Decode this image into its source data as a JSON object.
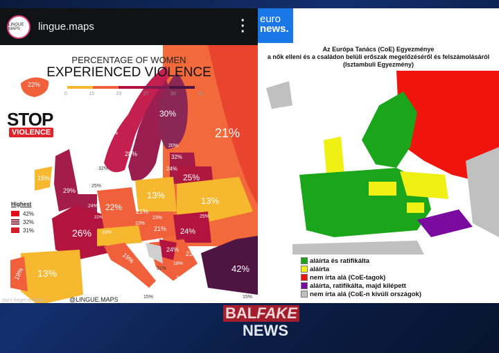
{
  "instagram": {
    "username": "lingue.maps",
    "avatar_text": "LINGUE MAPS",
    "more_icon": "more-vertical-icon"
  },
  "left_map": {
    "title_line1": "PERCENTAGE OF WOMEN",
    "title_line2": "EXPERIENCED VIOLENCE",
    "scale_ticks": [
      "0",
      "15",
      "23",
      "27",
      "32",
      "38"
    ],
    "scale_colors": [
      "#f5b82e",
      "#f0603a",
      "#b3143f",
      "#7a1a4e",
      "#4a1340"
    ],
    "stop_text": "STOP",
    "violence_text": "VIOLENCE",
    "highest": {
      "title": "Highest",
      "items": [
        {
          "value": "42%",
          "color": "#e30a17"
        },
        {
          "value": "32%",
          "color": "#8b2b3a"
        },
        {
          "value": "31%",
          "color": "#d11f2a"
        }
      ]
    },
    "labels": {
      "iceland": "22%",
      "russia": "21%",
      "finland": "30%",
      "sweden": "28%",
      "norway": "27%",
      "estonia": "20%",
      "latvia": "32%",
      "lithuania": "24%",
      "belarus": "25%",
      "denmark": "32%",
      "ireland": "15%",
      "uk": "29%",
      "netherlands": "25%",
      "belgium": "24%",
      "luxembourg": "22%",
      "germany": "22%",
      "poland": "13%",
      "ukraine": "13%",
      "czechia": "21%",
      "slovakia": "23%",
      "hungary": "21%",
      "austria": "13%",
      "switzerland": "16%",
      "france": "26%",
      "romania": "24%",
      "moldova": "25%",
      "serbia": "24%",
      "bulgaria": "23%",
      "north_macedonia": "18%",
      "albania": "31%",
      "greece": "19%",
      "italy": "19%",
      "spain": "13%",
      "portugal": "19%",
      "turkey": "42%",
      "cyprus": "15%",
      "malta": "15%"
    },
    "follow_text": "don't forget to follow",
    "handle": "@LINGUE.MAPS"
  },
  "right_map": {
    "logo_line1": "euro",
    "logo_line2": "news.",
    "title": [
      "Az Európa Tanács (CoE) Egyezménye",
      "a nők elleni és a családon belüli erőszak megelőzéséről és felszámolásáról",
      "(Isztambuli Egyezmény)"
    ],
    "legend": [
      {
        "label": "aláírta és ratifikálta",
        "color": "#1aa51a"
      },
      {
        "label": "aláírta",
        "color": "#f0f014"
      },
      {
        "label": "nem írta alá (CoE-tagok)",
        "color": "#f0140f"
      },
      {
        "label": "aláírta, ratifikálta, majd kilépett",
        "color": "#7a0aa0"
      },
      {
        "label": "nem írta alá (CoE-n kívüli országok)",
        "color": "#c0c0c0"
      }
    ]
  },
  "watermark": {
    "line1a": "BAL",
    "line1b": "FAKE",
    "line2": "NEWS"
  }
}
